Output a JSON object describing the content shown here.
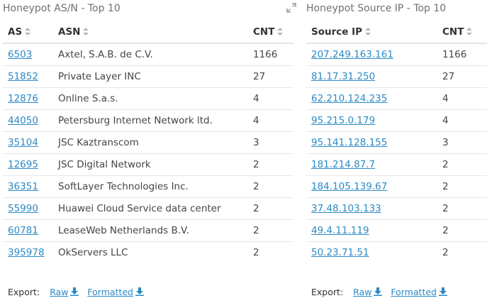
{
  "left": {
    "title": "Honeypot AS/N - Top 10",
    "columns": [
      "AS",
      "ASN",
      "CNT"
    ],
    "rows": [
      {
        "as": "6503",
        "asn": "Axtel, S.A.B. de C.V.",
        "cnt": "1166"
      },
      {
        "as": "51852",
        "asn": "Private Layer INC",
        "cnt": "27"
      },
      {
        "as": "12876",
        "asn": "Online S.a.s.",
        "cnt": "4"
      },
      {
        "as": "44050",
        "asn": "Petersburg Internet Network ltd.",
        "cnt": "4"
      },
      {
        "as": "35104",
        "asn": "JSC Kaztranscom",
        "cnt": "3"
      },
      {
        "as": "12695",
        "asn": "JSC Digital Network",
        "cnt": "2"
      },
      {
        "as": "36351",
        "asn": "SoftLayer Technologies Inc.",
        "cnt": "2"
      },
      {
        "as": "55990",
        "asn": "Huawei Cloud Service data center",
        "cnt": "2"
      },
      {
        "as": "60781",
        "asn": "LeaseWeb Netherlands B.V.",
        "cnt": "2"
      },
      {
        "as": "395978",
        "asn": "OkServers LLC",
        "cnt": "2"
      }
    ],
    "export": {
      "label": "Export:",
      "raw": "Raw",
      "formatted": "Formatted"
    }
  },
  "right": {
    "title": "Honeypot Source IP - Top 10",
    "columns": [
      "Source IP",
      "CNT"
    ],
    "rows": [
      {
        "ip": "207.249.163.161",
        "cnt": "1166"
      },
      {
        "ip": "81.17.31.250",
        "cnt": "27"
      },
      {
        "ip": "62.210.124.235",
        "cnt": "4"
      },
      {
        "ip": "95.215.0.179",
        "cnt": "4"
      },
      {
        "ip": "95.141.128.155",
        "cnt": "3"
      },
      {
        "ip": "181.214.87.7",
        "cnt": "2"
      },
      {
        "ip": "184.105.139.67",
        "cnt": "2"
      },
      {
        "ip": "37.48.103.133",
        "cnt": "2"
      },
      {
        "ip": "49.4.11.119",
        "cnt": "2"
      },
      {
        "ip": "50.23.71.51",
        "cnt": "2"
      }
    ],
    "export": {
      "label": "Export:",
      "raw": "Raw",
      "formatted": "Formatted"
    }
  },
  "colors": {
    "link": "#2c8ac4",
    "title": "#707070",
    "text": "#333333",
    "divider": "#e6e6e6"
  },
  "icons": {
    "expand": "expand-icon",
    "sort": "sort-icon",
    "download": "download-icon"
  }
}
